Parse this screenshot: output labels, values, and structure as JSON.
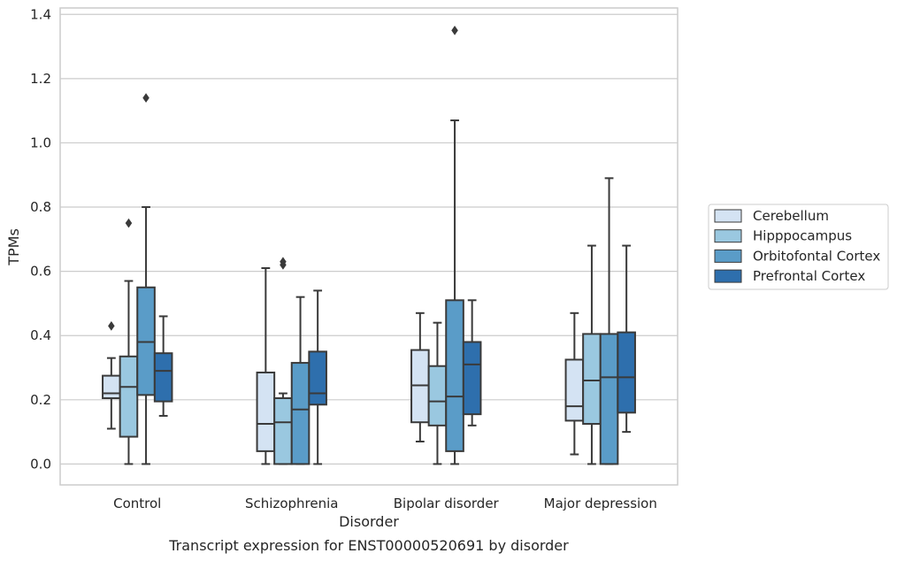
{
  "chart_data": {
    "type": "box",
    "caption": "Transcript expression for ENST00000520691 by disorder",
    "xlabel": "Disorder",
    "ylabel": "TPMs",
    "ylim": [
      -0.065,
      1.42
    ],
    "yticks": [
      0.0,
      0.2,
      0.4,
      0.6,
      0.8,
      1.0,
      1.2,
      1.4
    ],
    "ytick_labels": [
      "0.0",
      "0.2",
      "0.4",
      "0.6",
      "0.8",
      "1.0",
      "1.2",
      "1.4"
    ],
    "grid": true,
    "legend_position": "right",
    "categories": [
      "Control",
      "Schizophrenia",
      "Bipolar disorder",
      "Major depression"
    ],
    "series": [
      {
        "name": "Cerebellum",
        "color": "#d4e3f3",
        "boxes": [
          {
            "whislo": 0.11,
            "q1": 0.205,
            "med": 0.22,
            "q3": 0.275,
            "whishi": 0.33,
            "fliers": [
              0.43
            ]
          },
          {
            "whislo": 0.0,
            "q1": 0.04,
            "med": 0.125,
            "q3": 0.285,
            "whishi": 0.61,
            "fliers": []
          },
          {
            "whislo": 0.07,
            "q1": 0.13,
            "med": 0.245,
            "q3": 0.355,
            "whishi": 0.47,
            "fliers": []
          },
          {
            "whislo": 0.03,
            "q1": 0.135,
            "med": 0.18,
            "q3": 0.325,
            "whishi": 0.47,
            "fliers": []
          }
        ]
      },
      {
        "name": "Hipppocampus",
        "color": "#9ac8e0",
        "boxes": [
          {
            "whislo": 0.0,
            "q1": 0.085,
            "med": 0.24,
            "q3": 0.335,
            "whishi": 0.57,
            "fliers": [
              0.75
            ]
          },
          {
            "whislo": 0.0,
            "q1": 0.0,
            "med": 0.13,
            "q3": 0.205,
            "whishi": 0.22,
            "fliers": [
              0.62,
              0.63
            ]
          },
          {
            "whislo": 0.0,
            "q1": 0.12,
            "med": 0.195,
            "q3": 0.305,
            "whishi": 0.44,
            "fliers": []
          },
          {
            "whislo": 0.0,
            "q1": 0.125,
            "med": 0.26,
            "q3": 0.405,
            "whishi": 0.68,
            "fliers": []
          }
        ]
      },
      {
        "name": "Orbitofontal Cortex",
        "color": "#5a9cc8",
        "boxes": [
          {
            "whislo": 0.0,
            "q1": 0.215,
            "med": 0.38,
            "q3": 0.55,
            "whishi": 0.8,
            "fliers": [
              1.14
            ]
          },
          {
            "whislo": 0.0,
            "q1": 0.0,
            "med": 0.17,
            "q3": 0.315,
            "whishi": 0.52,
            "fliers": []
          },
          {
            "whislo": 0.0,
            "q1": 0.04,
            "med": 0.21,
            "q3": 0.51,
            "whishi": 1.07,
            "fliers": [
              1.35
            ]
          },
          {
            "whislo": 0.0,
            "q1": 0.0,
            "med": 0.27,
            "q3": 0.405,
            "whishi": 0.89,
            "fliers": []
          }
        ]
      },
      {
        "name": "Prefrontal Cortex",
        "color": "#2e6fad",
        "boxes": [
          {
            "whislo": 0.15,
            "q1": 0.195,
            "med": 0.29,
            "q3": 0.345,
            "whishi": 0.46,
            "fliers": []
          },
          {
            "whislo": 0.0,
            "q1": 0.185,
            "med": 0.22,
            "q3": 0.35,
            "whishi": 0.54,
            "fliers": []
          },
          {
            "whislo": 0.12,
            "q1": 0.155,
            "med": 0.31,
            "q3": 0.38,
            "whishi": 0.51,
            "fliers": []
          },
          {
            "whislo": 0.1,
            "q1": 0.16,
            "med": 0.27,
            "q3": 0.41,
            "whishi": 0.68,
            "fliers": []
          }
        ]
      }
    ]
  }
}
